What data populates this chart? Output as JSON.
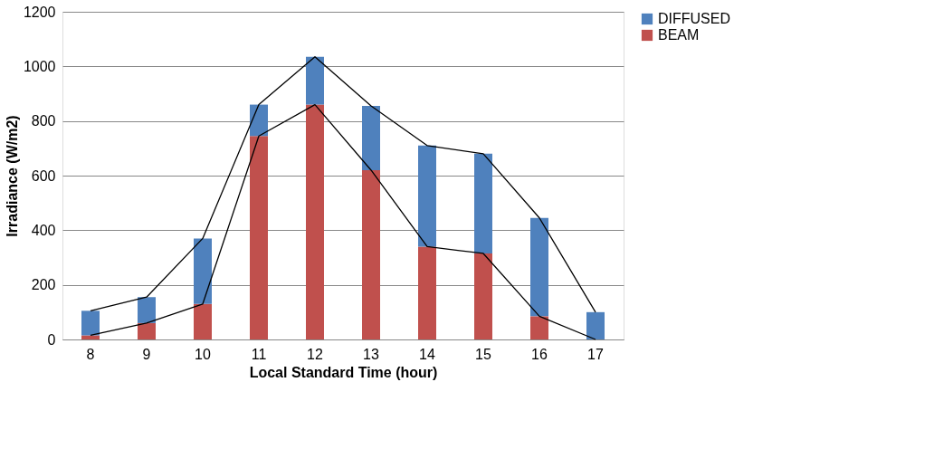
{
  "chart_data": {
    "type": "bar",
    "stacked": true,
    "xlabel": "Local Standard Time (hour)",
    "ylabel": "Irradiance (W/m2)",
    "categories": [
      "8",
      "9",
      "10",
      "11",
      "12",
      "13",
      "14",
      "15",
      "16",
      "17"
    ],
    "series": [
      {
        "name": "BEAM",
        "color": "#c0504d",
        "values": [
          15,
          60,
          130,
          745,
          860,
          620,
          340,
          315,
          85,
          0
        ]
      },
      {
        "name": "DIFFUSED",
        "color": "#4f81bd",
        "values": [
          90,
          95,
          240,
          115,
          175,
          235,
          370,
          365,
          360,
          100
        ]
      },
      {
        "type": "line",
        "color": "#000000",
        "values": [
          15,
          60,
          130,
          745,
          860,
          620,
          340,
          315,
          85,
          0
        ]
      },
      {
        "type": "line",
        "color": "#000000",
        "values": [
          105,
          155,
          370,
          860,
          1035,
          855,
          710,
          680,
          445,
          100
        ]
      }
    ],
    "ylim": [
      0,
      1200
    ],
    "yticks": [
      0,
      200,
      400,
      600,
      800,
      1000,
      1200
    ],
    "grid": "y",
    "legend": "right",
    "marker": "none",
    "line_style": "solid"
  }
}
